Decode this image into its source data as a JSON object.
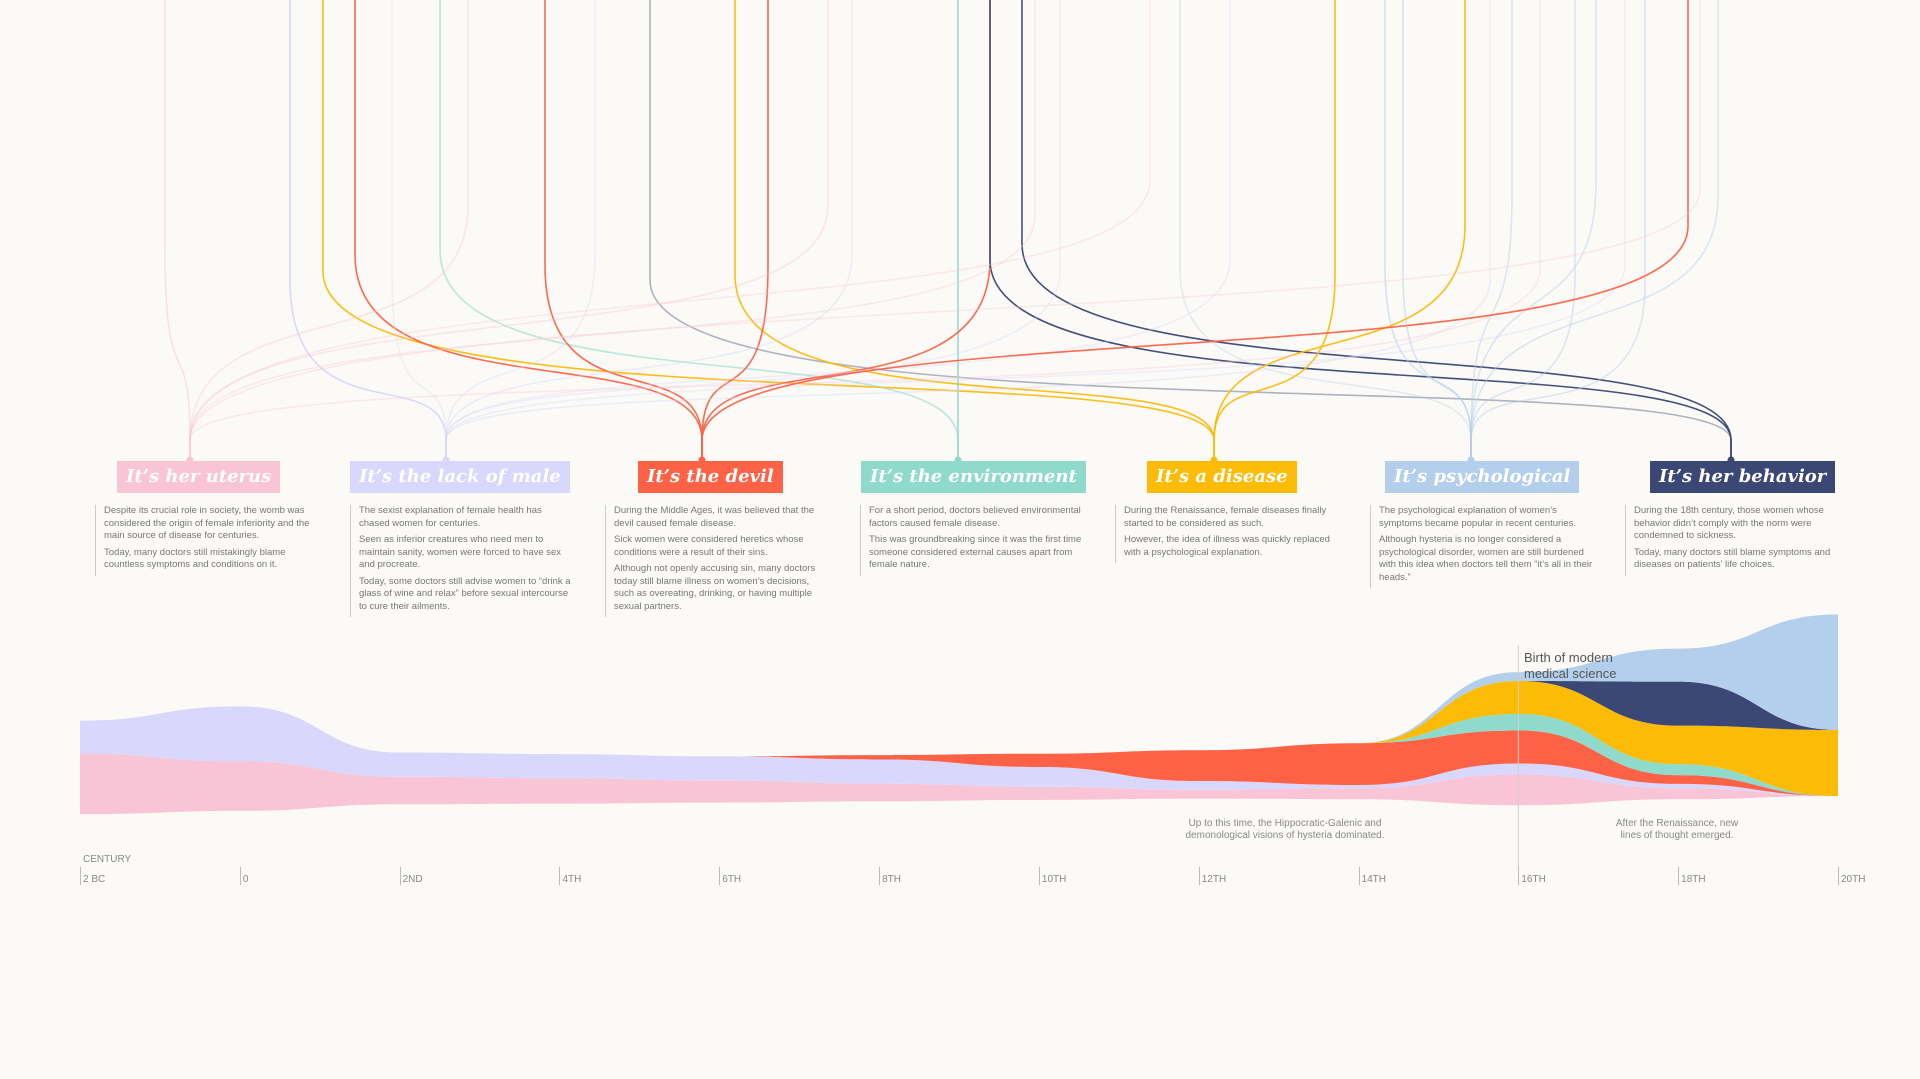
{
  "categories": [
    {
      "id": "uterus",
      "label": "It’s her uterus",
      "color": "#f9c5d6",
      "anchor": 190,
      "paragraphs": [
        "Despite its crucial role in society, the womb was considered the origin of female inferiority and the main source of disease for centuries.",
        "Today, many doctors still mistakingly blame countless symptoms and conditions on it."
      ]
    },
    {
      "id": "male",
      "label": "It’s the lack of male",
      "color": "#d9d7fb",
      "anchor": 446,
      "paragraphs": [
        "The sexist explanation of female health has chased women for centuries.",
        "Seen as inferior creatures who need men to maintain sanity, women were forced to have sex and procreate.",
        "Today, some doctors still advise women to “drink a glass of wine and relax” before sexual intercourse to cure their ailments."
      ]
    },
    {
      "id": "devil",
      "label": "It’s the devil",
      "color": "#fd6247",
      "anchor": 702,
      "paragraphs": [
        "During the Middle Ages, it was believed that the devil caused female disease.",
        "Sick women were considered heretics whose conditions were a result of their sins.",
        "Although not openly accusing sin, many doctors today still blame illness on women’s decisions, such as overeating, drinking, or having multiple sexual partners."
      ]
    },
    {
      "id": "environment",
      "label": "It’s the environment",
      "color": "#8fdacb",
      "anchor": 958,
      "paragraphs": [
        "For a short period, doctors believed environmental factors caused female disease.",
        "This was groundbreaking since it was the first time someone considered external causes apart from female nature."
      ]
    },
    {
      "id": "disease",
      "label": "It’s a disease",
      "color": "#fbbb07",
      "anchor": 1214,
      "paragraphs": [
        "During the Renaissance, female diseases finally started to be considered as such.",
        "However, the idea of illness was quickly replaced with a psychological explanation."
      ]
    },
    {
      "id": "psychological",
      "label": "It’s psychological",
      "color": "#b3cfec",
      "anchor": 1471,
      "paragraphs": [
        "The psychological explanation of women’s symptoms became popular in recent centuries.",
        "Although hysteria is no longer considered a psychological disorder, women are still burdened with this idea when doctors tell them “it’s all in their heads.”"
      ]
    },
    {
      "id": "behavior",
      "label": "It’s her behavior",
      "color": "#3b4774",
      "anchor": 1731,
      "paragraphs": [
        "During the 18th century, those women whose behavior didn’t comply with the norm were condemned to sickness.",
        "Today, many doctors still blame symptoms and diseases on patients’ life choices."
      ]
    }
  ],
  "timeline": {
    "axis_title": "CENTURY",
    "ticks": [
      "2 BC",
      "0",
      "2ND",
      "4TH",
      "6TH",
      "8TH",
      "10TH",
      "12TH",
      "14TH",
      "16TH",
      "18TH",
      "20TH"
    ],
    "milestone": "Birth of modern medical science",
    "notes": [
      "Up to this time, the Hippocratic-Galenic and demonological visions of hysteria dominated.",
      "After the Renaissance, new lines of thought emerged."
    ]
  },
  "chart_data": {
    "type": "area",
    "x": [
      "2 BC",
      "0",
      "2ND",
      "4TH",
      "6TH",
      "8TH",
      "10TH",
      "12TH",
      "14TH",
      "16TH",
      "18TH",
      "20TH"
    ],
    "series": [
      {
        "name": "It’s her uterus",
        "values": [
          55,
          45,
          25,
          23,
          20,
          16,
          12,
          8,
          10,
          28,
          10,
          0
        ]
      },
      {
        "name": "It’s the lack of male",
        "values": [
          30,
          50,
          22,
          22,
          22,
          22,
          18,
          8,
          3,
          10,
          4,
          0
        ]
      },
      {
        "name": "It’s the devil",
        "values": [
          0,
          0,
          0,
          0,
          0,
          4,
          12,
          28,
          38,
          30,
          8,
          0
        ]
      },
      {
        "name": "It’s the environment",
        "values": [
          0,
          0,
          0,
          0,
          0,
          0,
          0,
          0,
          0,
          15,
          10,
          0
        ]
      },
      {
        "name": "It’s a disease",
        "values": [
          0,
          0,
          0,
          0,
          0,
          0,
          0,
          0,
          0,
          30,
          35,
          60
        ]
      },
      {
        "name": "It’s her behavior",
        "values": [
          0,
          0,
          0,
          0,
          0,
          0,
          0,
          0,
          0,
          0,
          40,
          0
        ]
      },
      {
        "name": "It’s psychological",
        "values": [
          0,
          0,
          0,
          0,
          0,
          0,
          0,
          0,
          0,
          8,
          30,
          105
        ]
      }
    ]
  }
}
